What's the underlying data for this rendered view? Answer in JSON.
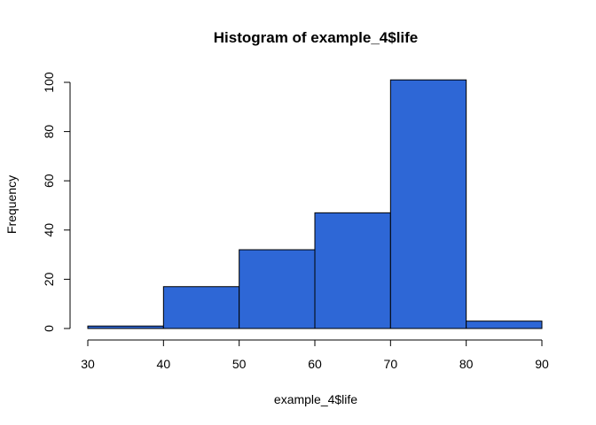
{
  "chart_data": {
    "type": "bar",
    "title": "Histogram of example_4$life",
    "xlabel": "example_4$life",
    "ylabel": "Frequency",
    "bins": [
      {
        "from": 30,
        "to": 40,
        "count": 1
      },
      {
        "from": 40,
        "to": 50,
        "count": 17
      },
      {
        "from": 50,
        "to": 60,
        "count": 32
      },
      {
        "from": 60,
        "to": 70,
        "count": 47
      },
      {
        "from": 70,
        "to": 80,
        "count": 101
      },
      {
        "from": 80,
        "to": 90,
        "count": 3
      }
    ],
    "xlim": [
      30,
      90
    ],
    "ylim": [
      0,
      100
    ],
    "x_ticks": [
      "30",
      "40",
      "50",
      "60",
      "70",
      "80",
      "90"
    ],
    "y_ticks": [
      "0",
      "20",
      "40",
      "60",
      "80",
      "100"
    ],
    "bar_color": "#2E67D6",
    "grid": false,
    "legend": "none"
  }
}
